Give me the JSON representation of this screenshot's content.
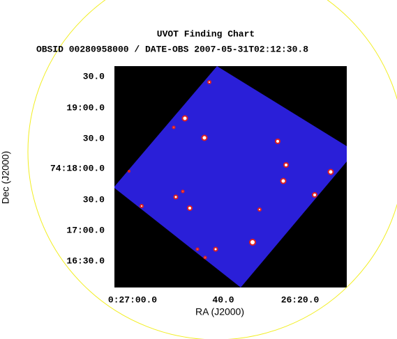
{
  "header": {
    "title": "UVOT Finding Chart",
    "subtitle": "OBSID 00280958000 / DATE-OBS 2007-05-31T02:12:30.8"
  },
  "x_axis": {
    "label": "RA (J2000)",
    "ticks": [
      "0:27:00.0",
      "40.0",
      "26:20.0"
    ]
  },
  "y_axis": {
    "label": "Dec (J2000)",
    "ticks": [
      "30.0",
      "19:00.0",
      "30.0",
      "74:18:00.0",
      "30.0",
      "17:00.0",
      "16:30.0"
    ]
  }
}
